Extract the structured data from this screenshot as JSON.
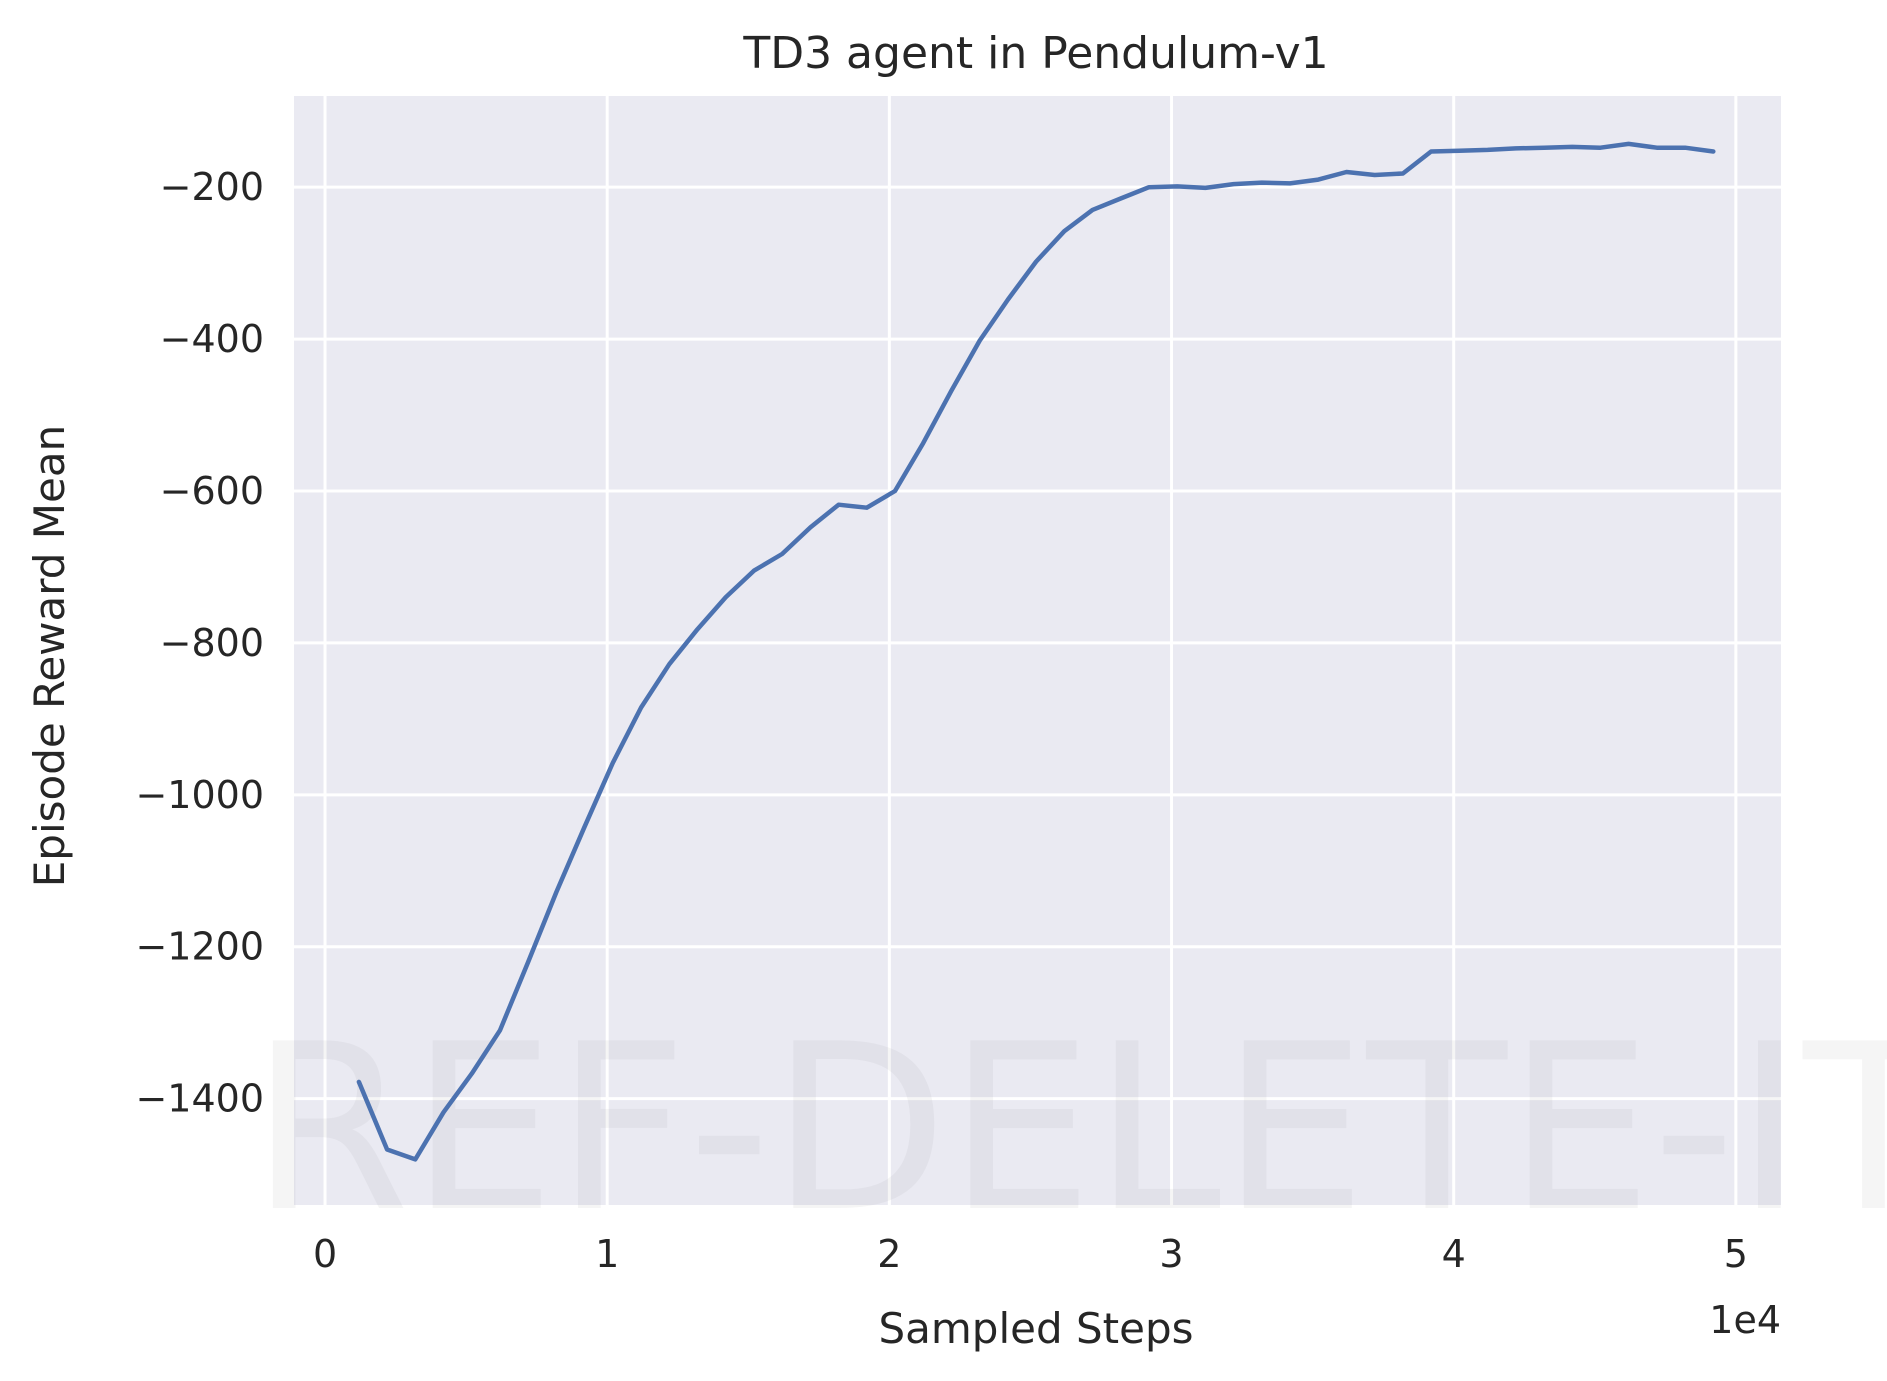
{
  "chart_data": {
    "type": "line",
    "title": "TD3 agent in Pendulum-v1",
    "xlabel": "Sampled Steps",
    "ylabel": "Episode Reward Mean",
    "x_offset_label": "1e4",
    "xlim": [
      -0.11,
      5.16
    ],
    "ylim": [
      -1540,
      -80
    ],
    "x_ticks": [
      0,
      1,
      2,
      3,
      4,
      5
    ],
    "x_tick_labels": [
      "0",
      "1",
      "2",
      "3",
      "4",
      "5"
    ],
    "y_ticks": [
      -200,
      -400,
      -600,
      -800,
      -1000,
      -1200,
      -1400
    ],
    "y_tick_labels": [
      "−200",
      "−400",
      "−600",
      "−800",
      "−1000",
      "−1200",
      "−1400"
    ],
    "grid": true,
    "background": "#eaeaf2",
    "grid_color": "#ffffff",
    "series": [
      {
        "color": "#4c72b0",
        "x": [
          0.12,
          0.22,
          0.32,
          0.42,
          0.52,
          0.62,
          0.72,
          0.82,
          0.92,
          1.02,
          1.12,
          1.22,
          1.32,
          1.42,
          1.52,
          1.62,
          1.72,
          1.82,
          1.92,
          2.02,
          2.12,
          2.22,
          2.32,
          2.42,
          2.52,
          2.62,
          2.72,
          2.82,
          2.92,
          3.02,
          3.12,
          3.22,
          3.32,
          3.42,
          3.52,
          3.62,
          3.72,
          3.82,
          3.92,
          4.02,
          4.12,
          4.22,
          4.32,
          4.42,
          4.52,
          4.62,
          4.72,
          4.82,
          4.92
        ],
        "y": [
          -1378,
          -1467,
          -1480,
          -1418,
          -1367,
          -1310,
          -1220,
          -1128,
          -1042,
          -958,
          -885,
          -828,
          -782,
          -740,
          -705,
          -683,
          -648,
          -618,
          -622,
          -600,
          -537,
          -468,
          -402,
          -348,
          -298,
          -258,
          -230,
          -215,
          -200,
          -199,
          -201,
          -196,
          -194,
          -195,
          -190,
          -180,
          -184,
          -182,
          -153,
          -152,
          -151,
          -149,
          -148,
          -147,
          -148,
          -143,
          -148,
          -148,
          -153
        ]
      }
    ]
  },
  "watermark": "REF-DELETE-IT"
}
